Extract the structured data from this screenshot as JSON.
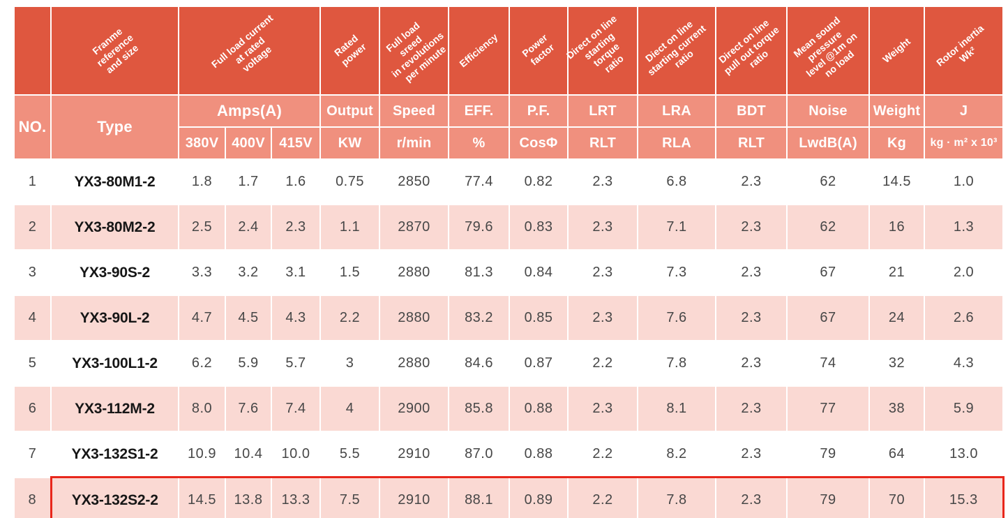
{
  "colors": {
    "header_dark": "#df573f",
    "header_light": "#f0907e",
    "row_pink": "#fad9d3",
    "row_white": "#ffffff",
    "highlight_red": "#e8271b",
    "header_text": "#ffffff",
    "data_text": "#474747"
  },
  "table": {
    "rotated_headers": {
      "no": "",
      "frame": "Franme\nreference\nand size",
      "full_load_current": "Full load current\nat rated\nvoltage",
      "rated_power": "Rated power",
      "full_load_speed": "Full load sreed\nin revolutions\nper minute",
      "efficiency": "Efficiency",
      "power_factor": "Power factor",
      "dol_starting_torque": "Direct on line\nstarting torque\nratio",
      "dol_starting_current": "Diect on line\nstarting current\nratio",
      "dol_pull_out_torque": "Direct on line\npull out torque\nratio",
      "mean_sound": "Mean sound\npressure\nlevel @1m on\nno load",
      "weight": "Weight",
      "rotor_inertia": "Rotor inertia\nWk²"
    },
    "subheaders": {
      "no": "NO.",
      "type": "Type",
      "amps": "Amps(A)",
      "v380": "380V",
      "v400": "400V",
      "v415": "415V",
      "output": "Output",
      "kw": "KW",
      "speed": "Speed",
      "rmin": "r/min",
      "eff": "EFF.",
      "pct": "%",
      "pf": "P.F.",
      "cosphi": "CosΦ",
      "lrt": "LRT",
      "rlt": "RLT",
      "lra": "LRA",
      "rla": "RLA",
      "bdt": "BDT",
      "rlt2": "RLT",
      "noise": "Noise",
      "lwdb": "LwdB(A)",
      "weight": "Weight",
      "kg": "Kg",
      "j": "J",
      "kgm2": "kg · m² x 10³"
    },
    "rows": [
      {
        "highlighted": false,
        "cells": [
          "1",
          "YX3-80M1-2",
          "1.8",
          "1.7",
          "1.6",
          "0.75",
          "2850",
          "77.4",
          "0.82",
          "2.3",
          "6.8",
          "2.3",
          "62",
          "14.5",
          "1.0"
        ]
      },
      {
        "highlighted": false,
        "cells": [
          "2",
          "YX3-80M2-2",
          "2.5",
          "2.4",
          "2.3",
          "1.1",
          "2870",
          "79.6",
          "0.83",
          "2.3",
          "7.1",
          "2.3",
          "62",
          "16",
          "1.3"
        ]
      },
      {
        "highlighted": false,
        "cells": [
          "3",
          "YX3-90S-2",
          "3.3",
          "3.2",
          "3.1",
          "1.5",
          "2880",
          "81.3",
          "0.84",
          "2.3",
          "7.3",
          "2.3",
          "67",
          "21",
          "2.0"
        ]
      },
      {
        "highlighted": false,
        "cells": [
          "4",
          "YX3-90L-2",
          "4.7",
          "4.5",
          "4.3",
          "2.2",
          "2880",
          "83.2",
          "0.85",
          "2.3",
          "7.6",
          "2.3",
          "67",
          "24",
          "2.6"
        ]
      },
      {
        "highlighted": false,
        "cells": [
          "5",
          "YX3-100L1-2",
          "6.2",
          "5.9",
          "5.7",
          "3",
          "2880",
          "84.6",
          "0.87",
          "2.2",
          "7.8",
          "2.3",
          "74",
          "32",
          "4.3"
        ]
      },
      {
        "highlighted": false,
        "cells": [
          "6",
          "YX3-112M-2",
          "8.0",
          "7.6",
          "7.4",
          "4",
          "2900",
          "85.8",
          "0.88",
          "2.3",
          "8.1",
          "2.3",
          "77",
          "38",
          "5.9"
        ]
      },
      {
        "highlighted": false,
        "cells": [
          "7",
          "YX3-132S1-2",
          "10.9",
          "10.4",
          "10.0",
          "5.5",
          "2910",
          "87.0",
          "0.88",
          "2.2",
          "8.2",
          "2.3",
          "79",
          "64",
          "13.0"
        ]
      },
      {
        "highlighted": true,
        "cells": [
          "8",
          "YX3-132S2-2",
          "14.5",
          "13.8",
          "13.3",
          "7.5",
          "2910",
          "88.1",
          "0.89",
          "2.2",
          "7.8",
          "2.3",
          "79",
          "70",
          "15.3"
        ]
      }
    ]
  }
}
